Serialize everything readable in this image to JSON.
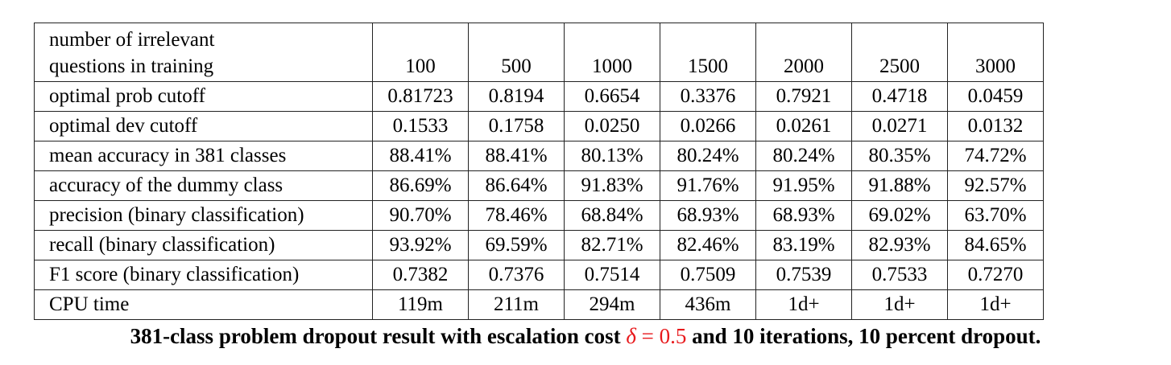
{
  "table": {
    "header_label_line1": "number of irrelevant",
    "header_label_line2": "questions in training",
    "columns": [
      "100",
      "500",
      "1000",
      "1500",
      "2000",
      "2500",
      "3000"
    ],
    "rows": [
      {
        "label": "optimal prob cutoff",
        "values": [
          "0.81723",
          "0.8194",
          "0.6654",
          "0.3376",
          "0.7921",
          "0.4718",
          "0.0459"
        ]
      },
      {
        "label": "optimal dev cutoff",
        "values": [
          "0.1533",
          "0.1758",
          "0.0250",
          "0.0266",
          "0.0261",
          "0.0271",
          "0.0132"
        ]
      },
      {
        "label": "mean accuracy in 381 classes",
        "values": [
          "88.41%",
          "88.41%",
          "80.13%",
          "80.24%",
          "80.24%",
          "80.35%",
          "74.72%"
        ]
      },
      {
        "label": "accuracy of the dummy class",
        "values": [
          "86.69%",
          "86.64%",
          "91.83%",
          "91.76%",
          "91.95%",
          "91.88%",
          "92.57%"
        ]
      },
      {
        "label": "precision (binary classification)",
        "values": [
          "90.70%",
          "78.46%",
          "68.84%",
          "68.93%",
          "68.93%",
          "69.02%",
          "63.70%"
        ]
      },
      {
        "label": "recall (binary classification)",
        "values": [
          "93.92%",
          "69.59%",
          "82.71%",
          "82.46%",
          "83.19%",
          "82.93%",
          "84.65%"
        ]
      },
      {
        "label": "F1 score (binary classification)",
        "values": [
          "0.7382",
          "0.7376",
          "0.7514",
          "0.7509",
          "0.7539",
          "0.7533",
          "0.7270"
        ]
      },
      {
        "label": "CPU time",
        "values": [
          "119m",
          "211m",
          "294m",
          "436m",
          "1d+",
          "1d+",
          "1d+"
        ]
      }
    ]
  },
  "caption": {
    "before": "381-class problem dropout result with escalation cost ",
    "delta": "δ",
    "equals": " = 0.5",
    "after": " and 10 iterations, 10 percent dropout.",
    "highlight_color": "#e8191c"
  }
}
